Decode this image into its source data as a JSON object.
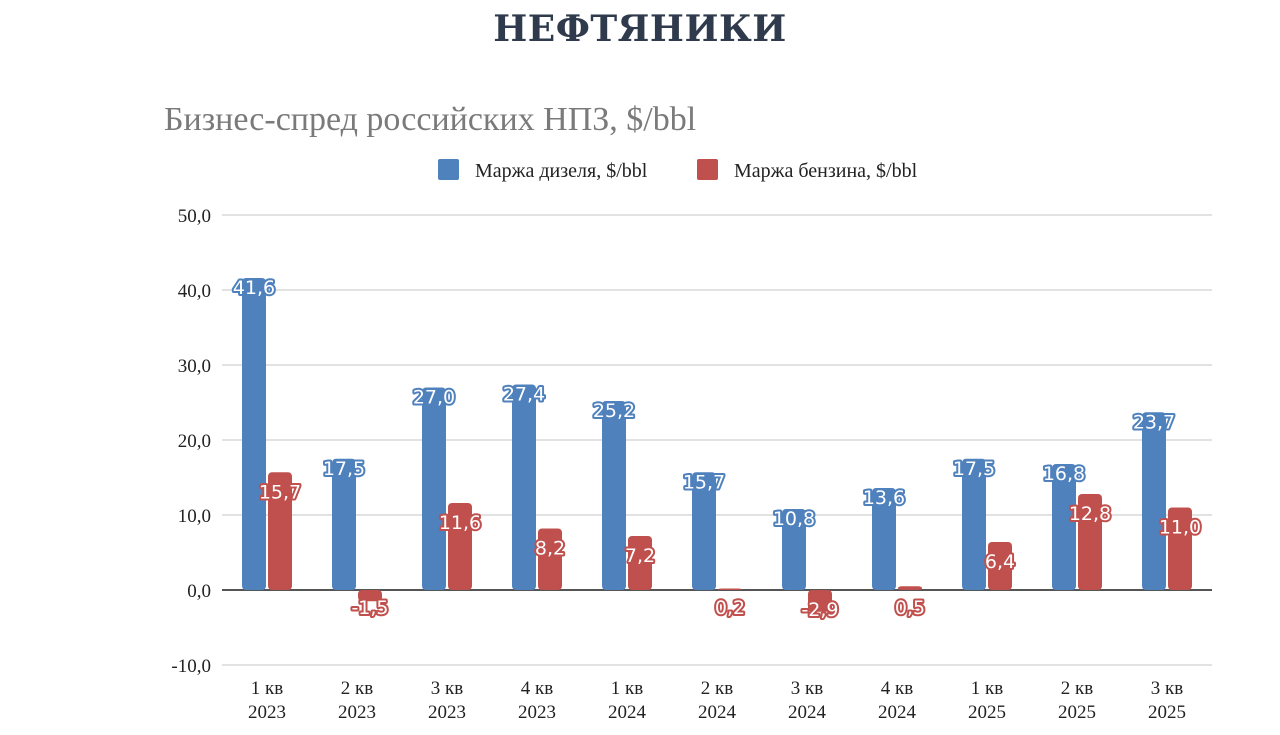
{
  "page": {
    "heading": "НЕФТЯНИКИ"
  },
  "chart_data": {
    "type": "bar",
    "title": "Бизнес-спред российских НПЗ, $/bbl",
    "categories": [
      [
        "1 кв",
        "2023"
      ],
      [
        "2 кв",
        "2023"
      ],
      [
        "3 кв",
        "2023"
      ],
      [
        "4 кв",
        "2023"
      ],
      [
        "1 кв",
        "2024"
      ],
      [
        "2 кв",
        "2024"
      ],
      [
        "3 кв",
        "2024"
      ],
      [
        "4 кв",
        "2024"
      ],
      [
        "1 кв",
        "2025"
      ],
      [
        "2 кв",
        "2025"
      ],
      [
        "3 кв",
        "2025"
      ]
    ],
    "series": [
      {
        "name": "Маржа дизеля, $/bbl",
        "color": "#4f81bd",
        "values": [
          41.6,
          17.5,
          27.0,
          27.4,
          25.2,
          15.7,
          10.8,
          13.6,
          17.5,
          16.8,
          23.7
        ],
        "labels": [
          "41,6",
          "17,5",
          "27,0",
          "27,4",
          "25,2",
          "15,7",
          "10,8",
          "13,6",
          "17,5",
          "16,8",
          "23,7"
        ]
      },
      {
        "name": "Маржа бензина, $/bbl",
        "color": "#c0504d",
        "values": [
          15.7,
          -1.5,
          11.6,
          8.2,
          7.2,
          0.2,
          -2.9,
          0.5,
          6.4,
          12.8,
          11.0
        ],
        "labels": [
          "15,7",
          "-1,5",
          "11,6",
          "8,2",
          "7,2",
          "0,2",
          "-2,9",
          "0,5",
          "6,4",
          "12,8",
          "11,0"
        ]
      }
    ],
    "ylim": [
      -10,
      50
    ],
    "yticks": [
      50,
      40,
      30,
      20,
      10,
      0,
      -10
    ],
    "ytick_labels": [
      "50,0",
      "40,0",
      "30,0",
      "20,0",
      "10,0",
      "0,0",
      "-10,0"
    ],
    "grid": true,
    "legend_position": "top-center"
  }
}
